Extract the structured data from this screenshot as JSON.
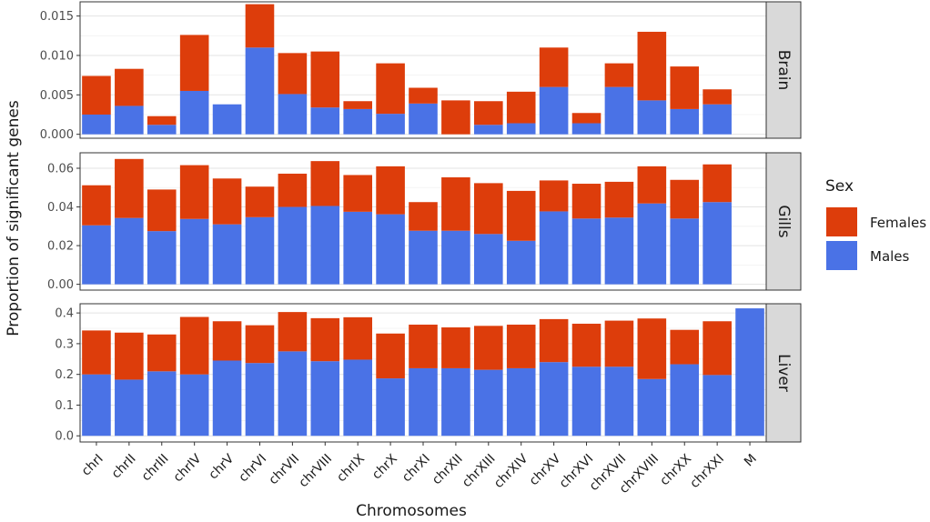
{
  "chart_data": {
    "type": "bar",
    "stacked": true,
    "facet_layout": "rows",
    "xlabel": "Chromosomes",
    "ylabel": "Proportion of significant genes",
    "categories": [
      "chrI",
      "chrII",
      "chrIII",
      "chrIV",
      "chrV",
      "chrVI",
      "chrVII",
      "chrVIII",
      "chrIX",
      "chrX",
      "chrXI",
      "chrXII",
      "chrXIII",
      "chrXIV",
      "chrXV",
      "chrXVI",
      "chrXVII",
      "chrXVIII",
      "chrXX",
      "chrXXI",
      "M"
    ],
    "legend": {
      "title": "Sex",
      "position": "right",
      "entries": [
        {
          "name": "Females",
          "color": "#dd3d0b"
        },
        {
          "name": "Males",
          "color": "#4a72e6"
        }
      ]
    },
    "grid": true,
    "panels": [
      {
        "name": "Brain",
        "ylim": [
          -0.0005,
          0.0168
        ],
        "yticks": [
          0.0,
          0.005,
          0.01,
          0.015
        ],
        "ytick_labels": [
          "0.000",
          "0.005",
          "0.010",
          "0.015"
        ],
        "series": [
          {
            "name": "Males",
            "values": [
              0.0025,
              0.0036,
              0.0012,
              0.0055,
              0.0038,
              0.011,
              0.0051,
              0.0034,
              0.0032,
              0.0026,
              0.0039,
              0.0,
              0.0012,
              0.0014,
              0.006,
              0.0014,
              0.006,
              0.0043,
              0.0032,
              0.0038,
              null
            ]
          },
          {
            "name": "Females",
            "values": [
              0.0049,
              0.0047,
              0.0011,
              0.0071,
              0.0,
              0.0055,
              0.0052,
              0.0071,
              0.001,
              0.0064,
              0.002,
              0.0043,
              0.003,
              0.004,
              0.005,
              0.0013,
              0.003,
              0.0087,
              0.0054,
              0.0019,
              null
            ]
          }
        ]
      },
      {
        "name": "Gills",
        "ylim": [
          -0.003,
          0.068
        ],
        "yticks": [
          0.0,
          0.02,
          0.04,
          0.06
        ],
        "ytick_labels": [
          "0.00",
          "0.02",
          "0.04",
          "0.06"
        ],
        "series": [
          {
            "name": "Males",
            "values": [
              0.0305,
              0.0343,
              0.0275,
              0.0338,
              0.031,
              0.0347,
              0.04,
              0.0405,
              0.0375,
              0.0362,
              0.0277,
              0.0277,
              0.026,
              0.0225,
              0.0377,
              0.034,
              0.0345,
              0.0418,
              0.034,
              0.0425,
              null
            ]
          },
          {
            "name": "Females",
            "values": [
              0.0207,
              0.0305,
              0.0215,
              0.0278,
              0.0237,
              0.0158,
              0.0172,
              0.0232,
              0.019,
              0.0248,
              0.0148,
              0.0276,
              0.0263,
              0.0258,
              0.016,
              0.018,
              0.0185,
              0.0192,
              0.02,
              0.0195,
              null
            ]
          }
        ]
      },
      {
        "name": "Liver",
        "ylim": [
          -0.02,
          0.43
        ],
        "yticks": [
          0.0,
          0.1,
          0.2,
          0.3,
          0.4
        ],
        "ytick_labels": [
          "0.0",
          "0.1",
          "0.2",
          "0.3",
          "0.4"
        ],
        "series": [
          {
            "name": "Males",
            "values": [
              0.2,
              0.183,
              0.21,
              0.2,
              0.245,
              0.237,
              0.275,
              0.243,
              0.248,
              0.187,
              0.22,
              0.22,
              0.215,
              0.22,
              0.24,
              0.225,
              0.225,
              0.185,
              0.233,
              0.198,
              0.415
            ]
          },
          {
            "name": "Females",
            "values": [
              0.143,
              0.153,
              0.12,
              0.187,
              0.128,
              0.123,
              0.128,
              0.14,
              0.138,
              0.146,
              0.142,
              0.133,
              0.143,
              0.142,
              0.14,
              0.14,
              0.15,
              0.197,
              0.112,
              0.175,
              0.0
            ]
          }
        ]
      }
    ]
  }
}
